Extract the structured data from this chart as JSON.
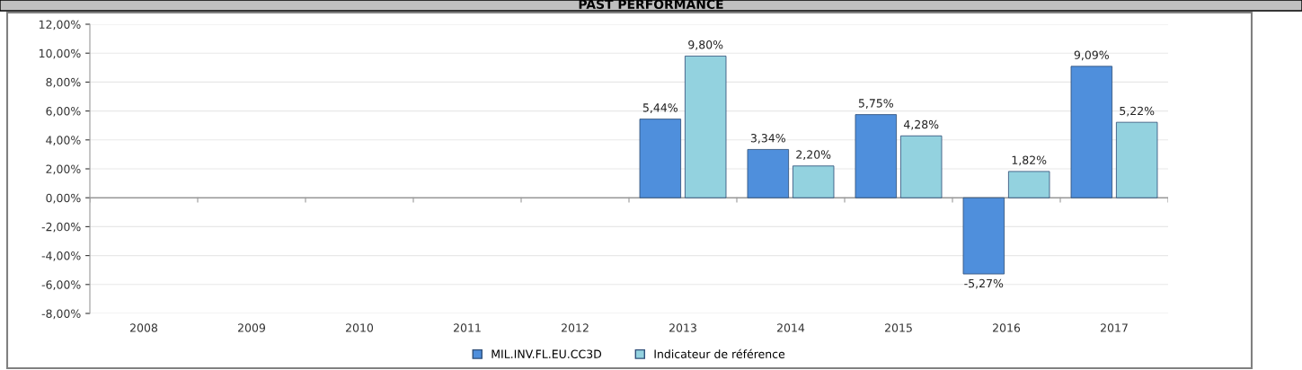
{
  "chart_data": {
    "type": "bar",
    "title": "PAST PERFORMANCE",
    "categories": [
      "2008",
      "2009",
      "2010",
      "2011",
      "2012",
      "2013",
      "2014",
      "2015",
      "2016",
      "2017"
    ],
    "series": [
      {
        "name": "MIL.INV.FL.EU.CC3D",
        "color": "#4f8fdc",
        "values": [
          null,
          null,
          null,
          null,
          null,
          5.44,
          3.34,
          5.75,
          -5.27,
          9.09
        ],
        "value_labels": [
          null,
          null,
          null,
          null,
          null,
          "5,44%",
          "3,34%",
          "5,75%",
          "-5,27%",
          "9,09%"
        ]
      },
      {
        "name": "Indicateur de référence",
        "color": "#93d2df",
        "values": [
          null,
          null,
          null,
          null,
          null,
          9.8,
          2.2,
          4.28,
          1.82,
          5.22
        ],
        "value_labels": [
          null,
          null,
          null,
          null,
          null,
          "9,80%",
          "2,20%",
          "4,28%",
          "1,82%",
          "5,22%"
        ]
      }
    ],
    "ylim": [
      -8,
      12
    ],
    "yticks": [
      {
        "value": -8,
        "label": "-8,00%"
      },
      {
        "value": -6,
        "label": "-6,00%"
      },
      {
        "value": -4,
        "label": "-4,00%"
      },
      {
        "value": -2,
        "label": "-2,00%"
      },
      {
        "value": 0,
        "label": "0,00%"
      },
      {
        "value": 2,
        "label": "2,00%"
      },
      {
        "value": 4,
        "label": "4,00%"
      },
      {
        "value": 6,
        "label": "6,00%"
      },
      {
        "value": 8,
        "label": "8,00%"
      },
      {
        "value": 10,
        "label": "10,00%"
      },
      {
        "value": 12,
        "label": "12,00%"
      }
    ],
    "grid": "y",
    "legend": "bottom"
  }
}
